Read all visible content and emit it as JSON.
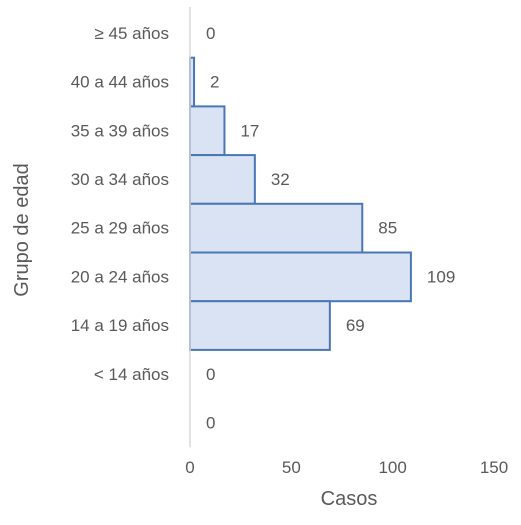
{
  "chart_data": {
    "type": "bar",
    "orientation": "horizontal",
    "categories": [
      "≥ 45 años",
      "40 a 44 años",
      "35 a 39 años",
      "30 a 34 años",
      "25 a 29 años",
      "20 a 24 años",
      "14 a 19 años",
      "< 14 años",
      ""
    ],
    "values": [
      0,
      2,
      17,
      32,
      85,
      109,
      69,
      0,
      0
    ],
    "data_labels": [
      "0",
      "2",
      "17",
      "32",
      "85",
      "109",
      "69",
      "0",
      "0"
    ],
    "xlabel": "Casos",
    "ylabel": "Grupo de edad",
    "xlim": [
      0,
      150
    ],
    "xticks": [
      "0",
      "50",
      "100",
      "150"
    ],
    "grid": false,
    "legend": "none",
    "colors": {
      "bar_fill": "#dae3f3",
      "bar_stroke": "#4a77b4",
      "axis": "#d9d9d9",
      "text": "#595959"
    }
  }
}
